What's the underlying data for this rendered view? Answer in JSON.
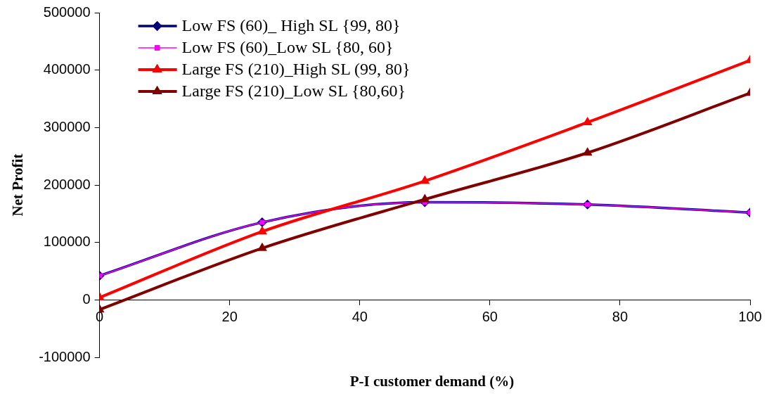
{
  "chart_data": {
    "type": "line",
    "xlabel": "P-I customer demand (%)",
    "ylabel": "Net Profit",
    "x": [
      0,
      25,
      50,
      75,
      100
    ],
    "xlim": [
      0,
      100
    ],
    "xticks": [
      0,
      20,
      40,
      60,
      80,
      100
    ],
    "ylim": [
      -100000,
      500000
    ],
    "yticks": [
      -100000,
      0,
      100000,
      200000,
      300000,
      400000,
      500000
    ],
    "grid": false,
    "legend": "top left",
    "line_style": "solid",
    "series": [
      {
        "name": "Low FS (60)_ High SL {99, 80}",
        "color": "#000080",
        "marker": "diamond",
        "values": [
          42000,
          135000,
          170000,
          166000,
          152000
        ]
      },
      {
        "name": "Low FS (60)_Low SL {80, 60}",
        "color": "#ff00ff",
        "marker": "square",
        "values": [
          42000,
          135000,
          170000,
          166000,
          152000
        ]
      },
      {
        "name": "Large FS (210)_High SL (99, 80}",
        "color": "#ff0000",
        "marker": "triangle",
        "values": [
          4000,
          119000,
          207000,
          309000,
          417000
        ]
      },
      {
        "name": "Large FS (210)_Low SL {80,60}",
        "color": "#800000",
        "marker": "triangle",
        "values": [
          -17000,
          90000,
          175000,
          256000,
          360000
        ]
      }
    ]
  }
}
